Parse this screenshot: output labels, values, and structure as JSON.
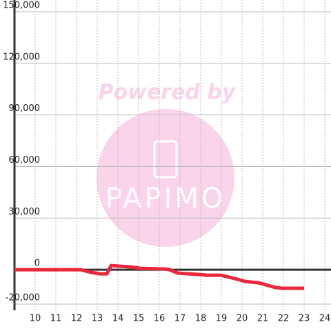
{
  "chart_data": {
    "type": "line",
    "watermark": [
      "Powered by",
      "PAPIMO"
    ],
    "x": [
      9,
      12.2,
      12.73,
      13.13,
      13.47,
      13.67,
      14.13,
      14.63,
      15.07,
      16.3,
      16.5,
      16.9,
      17.97,
      18.3,
      18.97,
      19.8,
      20.13,
      20.8,
      21.63,
      21.97,
      23
    ],
    "series": [
      {
        "color": "#e8283c",
        "values": [
          0,
          0,
          -1600,
          -2400,
          -2400,
          2400,
          2000,
          1600,
          800,
          400,
          0,
          -2000,
          -2800,
          -3200,
          -3200,
          -5600,
          -6800,
          -7600,
          -10400,
          -10800,
          -10800
        ]
      }
    ],
    "xlim": [
      9,
      24.3
    ],
    "xticks": [
      10,
      11,
      12,
      13,
      14,
      15,
      16,
      17,
      18,
      19,
      20,
      21,
      22,
      23,
      24
    ],
    "ylim": [
      -20000,
      150000
    ],
    "yticks": [
      {
        "value": -20000,
        "label": "-20,000"
      },
      0,
      {
        "value": 30000,
        "label": "30,000"
      },
      {
        "value": 60000,
        "label": "60,000"
      },
      {
        "value": 90000,
        "label": "90,000"
      },
      {
        "value": 120000,
        "label": "120,000"
      },
      {
        "value": 150000,
        "label": "150,000"
      }
    ],
    "grid": true
  }
}
